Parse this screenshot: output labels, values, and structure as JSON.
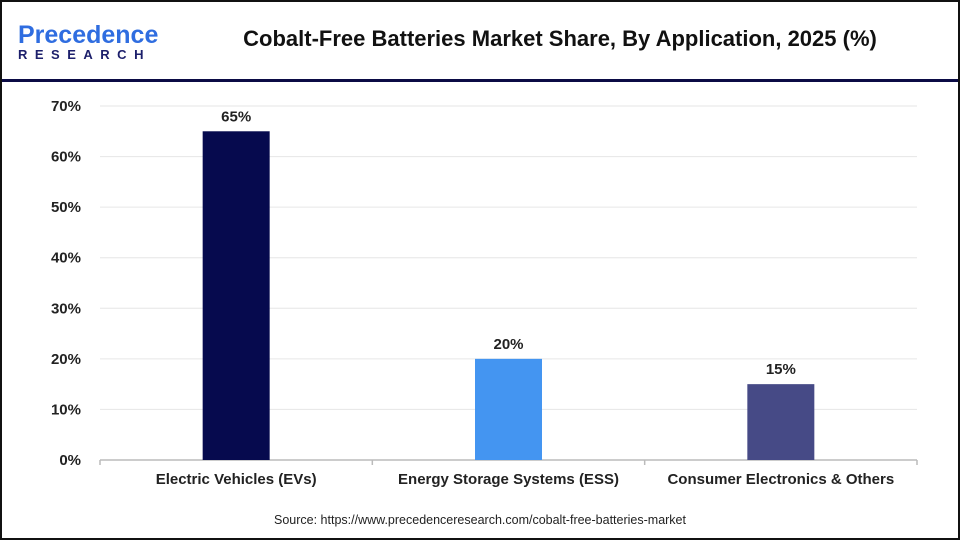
{
  "logo": {
    "line1": "Precedence",
    "line2": "RESEARCH"
  },
  "title": "Cobalt-Free Batteries Market Share, By Application, 2025 (%)",
  "source": "Source: https://www.precedenceresearch.com/cobalt-free-batteries-market",
  "chart_data": {
    "type": "bar",
    "title": "Cobalt-Free Batteries Market Share, By Application, 2025 (%)",
    "categories": [
      "Electric Vehicles (EVs)",
      "Energy Storage Systems (ESS)",
      "Consumer Electronics & Others"
    ],
    "values": [
      65,
      20,
      15
    ],
    "data_labels": [
      "65%",
      "20%",
      "15%"
    ],
    "colors": [
      "#060a4e",
      "#4495f1",
      "#464a86"
    ],
    "ylim": [
      0,
      70
    ],
    "yticks": [
      0,
      10,
      20,
      30,
      40,
      50,
      60,
      70
    ],
    "ytick_labels": [
      "0%",
      "10%",
      "20%",
      "30%",
      "40%",
      "50%",
      "60%",
      "70%"
    ],
    "grid": true,
    "xlabel": "",
    "ylabel": ""
  }
}
